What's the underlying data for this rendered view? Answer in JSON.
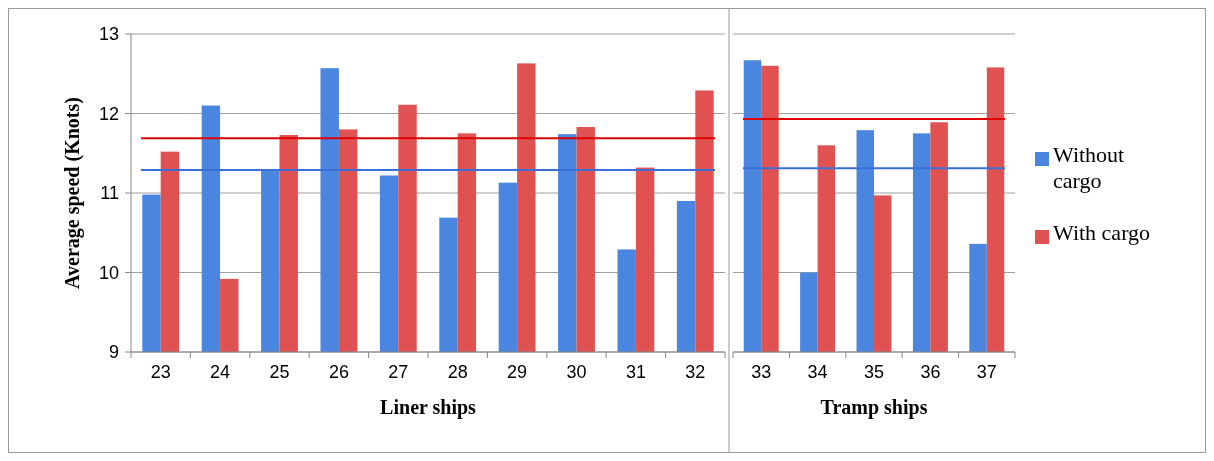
{
  "chart_data": [
    {
      "type": "bar",
      "xlabel": "Liner ships",
      "ylabel": "Average speed (Knots)",
      "categories": [
        "23",
        "24",
        "25",
        "26",
        "27",
        "28",
        "29",
        "30",
        "31",
        "32"
      ],
      "ylim": [
        9,
        13
      ],
      "yticks": [
        9,
        10,
        11,
        12,
        13
      ],
      "grid": "y",
      "series": [
        {
          "color": "#4a86e0",
          "values": [
            10.98,
            12.1,
            11.28,
            12.57,
            11.22,
            10.69,
            11.13,
            11.74,
            10.29,
            10.9
          ]
        },
        {
          "color": "#e05252",
          "values": [
            11.52,
            9.92,
            11.73,
            11.8,
            12.11,
            11.75,
            12.63,
            11.83,
            11.32,
            12.29
          ]
        }
      ],
      "ref_lines": [
        {
          "axis": "y",
          "value": 11.29,
          "color": "#3a6fd8"
        },
        {
          "axis": "y",
          "value": 11.69,
          "color": "#e00000"
        }
      ]
    },
    {
      "type": "bar",
      "xlabel": "Tramp ships",
      "categories": [
        "33",
        "34",
        "35",
        "36",
        "37"
      ],
      "ylim": [
        9,
        13
      ],
      "yticks": [
        9,
        10,
        11,
        12,
        13
      ],
      "grid": "y",
      "tick_labels": "x",
      "legend": "right",
      "series": [
        {
          "name": "Without cargo",
          "color": "#4a86e0",
          "values": [
            12.67,
            10.0,
            11.79,
            11.75,
            10.36
          ]
        },
        {
          "name": "With cargo",
          "color": "#e05252",
          "values": [
            12.6,
            11.6,
            10.97,
            11.89,
            12.58
          ]
        }
      ],
      "ref_lines": [
        {
          "axis": "y",
          "value": 11.31,
          "color": "#3a6fd8"
        },
        {
          "axis": "y",
          "value": 11.93,
          "color": "#e00000"
        }
      ]
    }
  ]
}
